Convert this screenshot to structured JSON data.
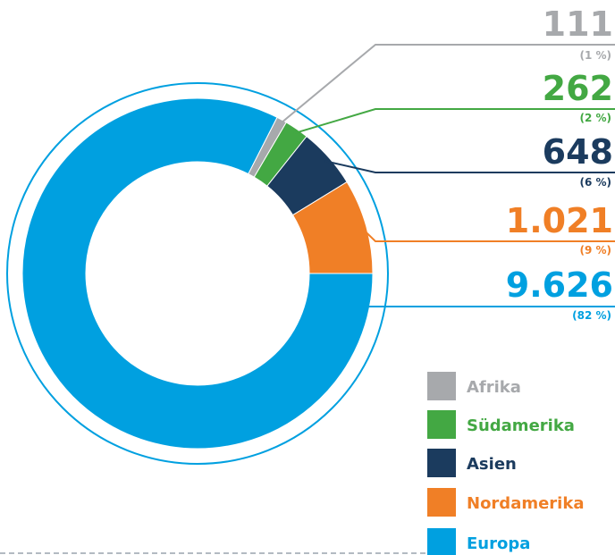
{
  "chart_data": {
    "type": "donut",
    "categories": [
      "Afrika",
      "Südamerika",
      "Asien",
      "Nordamerika",
      "Europa"
    ],
    "values": [
      111,
      262,
      648,
      1021,
      9626
    ],
    "value_labels": [
      "111",
      "262",
      "648",
      "1.021",
      "9.626"
    ],
    "percent_labels": [
      "(1 %)",
      "(2 %)",
      "(6 %)",
      "(9 %)",
      "(82 %)"
    ],
    "colors": [
      "#a7a9ac",
      "#43a843",
      "#1b3b5e",
      "#f07f26",
      "#00a0e0"
    ],
    "legend": "bottom-right"
  }
}
